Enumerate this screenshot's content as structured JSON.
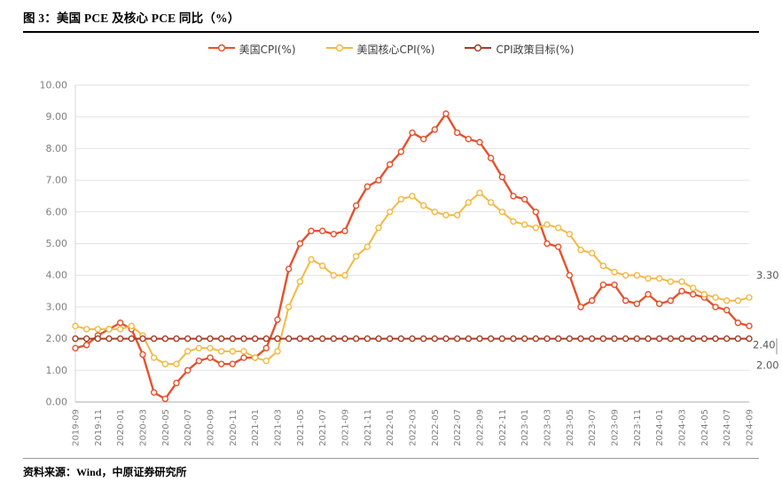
{
  "figure": {
    "title": "图 3：美国 PCE 及核心 PCE 同比（%）",
    "source": "资料来源：Wind，中原证券研究所"
  },
  "chart_data": {
    "type": "line",
    "title": "图 3：美国 PCE 及核心 PCE 同比（%）",
    "grid": true,
    "legend_position": "top",
    "ylim": [
      0,
      10
    ],
    "y_tick_labels": [
      "0.00",
      "1.00",
      "2.00",
      "3.00",
      "4.00",
      "5.00",
      "6.00",
      "7.00",
      "8.00",
      "9.00",
      "10.00"
    ],
    "x_tick_labels": [
      "2019-09",
      "2019-11",
      "2020-01",
      "2020-03",
      "2020-05",
      "2020-07",
      "2020-09",
      "2020-11",
      "2021-01",
      "2021-03",
      "2021-05",
      "2021-07",
      "2021-09",
      "2021-11",
      "2022-01",
      "2022-03",
      "2022-05",
      "2022-07",
      "2022-09",
      "2022-11",
      "2023-01",
      "2023-03",
      "2023-05",
      "2023-07",
      "2023-09",
      "2023-11",
      "2024-01",
      "2024-03",
      "2024-05",
      "2024-07",
      "2024-09"
    ],
    "categories": [
      "2019-09",
      "2019-10",
      "2019-11",
      "2019-12",
      "2020-01",
      "2020-02",
      "2020-03",
      "2020-04",
      "2020-05",
      "2020-06",
      "2020-07",
      "2020-08",
      "2020-09",
      "2020-10",
      "2020-11",
      "2020-12",
      "2021-01",
      "2021-02",
      "2021-03",
      "2021-04",
      "2021-05",
      "2021-06",
      "2021-07",
      "2021-08",
      "2021-09",
      "2021-10",
      "2021-11",
      "2021-12",
      "2022-01",
      "2022-02",
      "2022-03",
      "2022-04",
      "2022-05",
      "2022-06",
      "2022-07",
      "2022-08",
      "2022-09",
      "2022-10",
      "2022-11",
      "2022-12",
      "2023-01",
      "2023-02",
      "2023-03",
      "2023-04",
      "2023-05",
      "2023-06",
      "2023-07",
      "2023-08",
      "2023-09",
      "2023-10",
      "2023-11",
      "2023-12",
      "2024-01",
      "2024-02",
      "2024-03",
      "2024-04",
      "2024-05",
      "2024-06",
      "2024-07",
      "2024-08",
      "2024-09"
    ],
    "series": [
      {
        "name": "美国CPI(%)",
        "color": "#e6512d",
        "end_label": "2.40",
        "values": [
          1.7,
          1.8,
          2.1,
          2.3,
          2.5,
          2.3,
          1.5,
          0.3,
          0.1,
          0.6,
          1.0,
          1.3,
          1.4,
          1.2,
          1.2,
          1.4,
          1.4,
          1.7,
          2.6,
          4.2,
          5.0,
          5.4,
          5.4,
          5.3,
          5.4,
          6.2,
          6.8,
          7.0,
          7.5,
          7.9,
          8.5,
          8.3,
          8.6,
          9.1,
          8.5,
          8.3,
          8.2,
          7.7,
          7.1,
          6.5,
          6.4,
          6.0,
          5.0,
          4.9,
          4.0,
          3.0,
          3.2,
          3.7,
          3.7,
          3.2,
          3.1,
          3.4,
          3.1,
          3.2,
          3.5,
          3.4,
          3.3,
          3.0,
          2.9,
          2.5,
          2.4
        ]
      },
      {
        "name": "美国核心CPI(%)",
        "color": "#f4b942",
        "end_label": "3.30",
        "values": [
          2.4,
          2.3,
          2.3,
          2.3,
          2.3,
          2.4,
          2.1,
          1.4,
          1.2,
          1.2,
          1.6,
          1.7,
          1.7,
          1.6,
          1.6,
          1.6,
          1.4,
          1.3,
          1.6,
          3.0,
          3.8,
          4.5,
          4.3,
          4.0,
          4.0,
          4.6,
          4.9,
          5.5,
          6.0,
          6.4,
          6.5,
          6.2,
          6.0,
          5.9,
          5.9,
          6.3,
          6.6,
          6.3,
          6.0,
          5.7,
          5.6,
          5.5,
          5.6,
          5.5,
          5.3,
          4.8,
          4.7,
          4.3,
          4.1,
          4.0,
          4.0,
          3.9,
          3.9,
          3.8,
          3.8,
          3.6,
          3.4,
          3.3,
          3.2,
          3.2,
          3.3
        ]
      },
      {
        "name": "CPI政策目标(%)",
        "color": "#a33d23",
        "end_label": "2.00",
        "values": [
          2.0,
          2.0,
          2.0,
          2.0,
          2.0,
          2.0,
          2.0,
          2.0,
          2.0,
          2.0,
          2.0,
          2.0,
          2.0,
          2.0,
          2.0,
          2.0,
          2.0,
          2.0,
          2.0,
          2.0,
          2.0,
          2.0,
          2.0,
          2.0,
          2.0,
          2.0,
          2.0,
          2.0,
          2.0,
          2.0,
          2.0,
          2.0,
          2.0,
          2.0,
          2.0,
          2.0,
          2.0,
          2.0,
          2.0,
          2.0,
          2.0,
          2.0,
          2.0,
          2.0,
          2.0,
          2.0,
          2.0,
          2.0,
          2.0,
          2.0,
          2.0,
          2.0,
          2.0,
          2.0,
          2.0,
          2.0,
          2.0,
          2.0,
          2.0,
          2.0,
          2.0
        ]
      }
    ]
  }
}
